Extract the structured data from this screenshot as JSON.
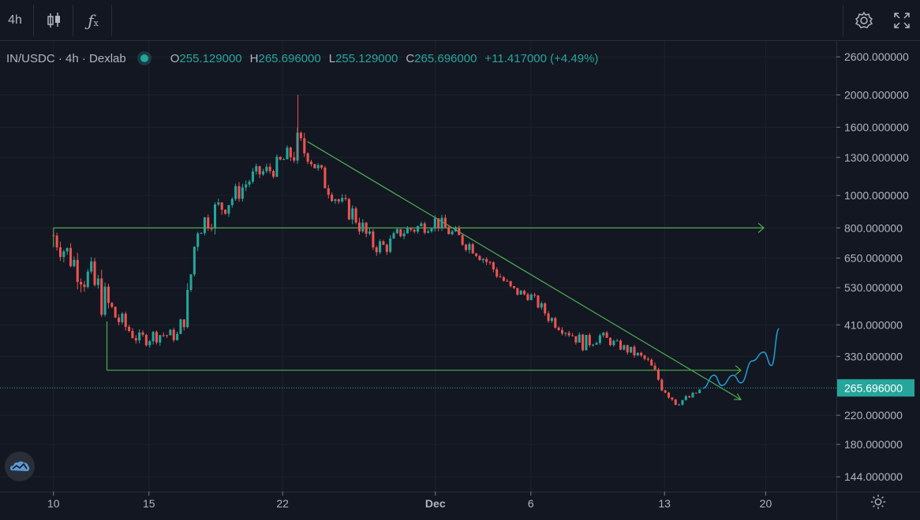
{
  "toolbar": {
    "interval_label": "4h",
    "candles_icon": "candlestick-icon",
    "indicators_icon": "fx-icon",
    "settings_icon": "gear-icon",
    "fullscreen_icon": "fullscreen-icon"
  },
  "legend": {
    "symbol": "IN/USDC · 4h · Dexlab",
    "open_label": "O",
    "open_value": "255.129000",
    "high_label": "H",
    "high_value": "265.696000",
    "low_label": "L",
    "low_value": "255.129000",
    "close_label": "C",
    "close_value": "265.696000",
    "change": "+11.417000 (+4.49%)"
  },
  "colors": {
    "background": "#131722",
    "up": "#26a69a",
    "down": "#ef5350",
    "trendline": "#4caf50",
    "projection": "#1e9fd6",
    "grid": "#1e222d"
  },
  "chart_data": {
    "type": "candlestick",
    "scale": "log",
    "ylim": [
      130,
      2900
    ],
    "y_ticks": [
      "2600.000000",
      "2000.000000",
      "1600.000000",
      "1300.000000",
      "1000.000000",
      "800.000000",
      "650.000000",
      "530.000000",
      "410.000000",
      "330.000000",
      "265.696000",
      "220.000000",
      "180.000000",
      "144.000000"
    ],
    "x_ticks": [
      "10",
      "15",
      "22",
      "Dec",
      "6",
      "13",
      "20"
    ],
    "last_price": 265.696,
    "last_price_label": "265.696000",
    "series_path": [
      [
        10.0,
        760,
        860,
        600
      ],
      [
        11.2,
        620,
        720,
        470
      ],
      [
        12.3,
        520,
        700,
        380
      ],
      [
        13.3,
        430,
        470,
        350
      ],
      [
        14.5,
        370,
        420,
        345
      ],
      [
        15.5,
        385,
        440,
        360
      ],
      [
        16.5,
        380,
        420,
        360
      ],
      [
        17.0,
        470,
        700,
        440
      ],
      [
        17.5,
        800,
        950,
        700
      ],
      [
        18.5,
        900,
        1100,
        760
      ],
      [
        19.5,
        1000,
        1200,
        920
      ],
      [
        20.5,
        1150,
        1300,
        1050
      ],
      [
        21.5,
        1200,
        1350,
        1080
      ],
      [
        22.2,
        1300,
        1450,
        1150
      ],
      [
        22.8,
        1380,
        2000,
        1200
      ],
      [
        23.3,
        1350,
        1450,
        1100
      ],
      [
        24.2,
        1100,
        1250,
        950
      ],
      [
        25.0,
        950,
        1050,
        850
      ],
      [
        25.8,
        870,
        950,
        700
      ],
      [
        26.6,
        720,
        860,
        650
      ],
      [
        27.4,
        700,
        780,
        640
      ],
      [
        28.2,
        780,
        850,
        690
      ],
      [
        29.0,
        800,
        900,
        730
      ],
      [
        30.0,
        840,
        920,
        760
      ],
      [
        31.0,
        760,
        860,
        690
      ],
      [
        32.0,
        700,
        760,
        620
      ],
      [
        33.2,
        590,
        650,
        530
      ],
      [
        34.0,
        520,
        560,
        480
      ],
      [
        35.0,
        500,
        530,
        470
      ],
      [
        36.0,
        430,
        480,
        400
      ],
      [
        37.0,
        390,
        420,
        360
      ],
      [
        37.8,
        360,
        380,
        310
      ],
      [
        38.6,
        380,
        410,
        350
      ],
      [
        39.4,
        360,
        380,
        340
      ],
      [
        40.3,
        340,
        360,
        315
      ],
      [
        41.1,
        320,
        335,
        300
      ],
      [
        41.8,
        275,
        300,
        240
      ],
      [
        42.6,
        240,
        260,
        235
      ],
      [
        43.4,
        250,
        262,
        240
      ],
      [
        44.0,
        265,
        275,
        255
      ]
    ],
    "projection": [
      [
        44.0,
        265
      ],
      [
        44.6,
        290
      ],
      [
        45.0,
        270
      ],
      [
        45.6,
        290
      ],
      [
        46.0,
        275
      ],
      [
        46.6,
        320
      ],
      [
        47.2,
        340
      ],
      [
        47.6,
        310
      ],
      [
        48.0,
        400
      ]
    ],
    "lines": {
      "horizontal_resistance": {
        "value": 800,
        "from_x": 10.0,
        "to_x": 47.2
      },
      "horizontal_support": {
        "value": 300,
        "from_x": 12.8,
        "to_x": 46.0
      },
      "trendline": {
        "from": [
          23.3,
          1450
        ],
        "to": [
          46.0,
          245
        ]
      }
    }
  }
}
